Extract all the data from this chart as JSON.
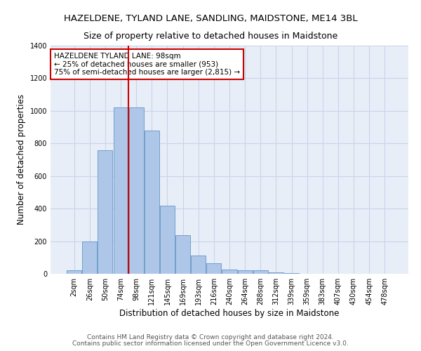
{
  "title": "HAZELDENE, TYLAND LANE, SANDLING, MAIDSTONE, ME14 3BL",
  "subtitle": "Size of property relative to detached houses in Maidstone",
  "xlabel": "Distribution of detached houses by size in Maidstone",
  "ylabel": "Number of detached properties",
  "footer1": "Contains HM Land Registry data © Crown copyright and database right 2024.",
  "footer2": "Contains public sector information licensed under the Open Government Licence v3.0.",
  "annotation_title": "HAZELDENE TYLAND LANE: 98sqm",
  "annotation_line1": "← 25% of detached houses are smaller (953)",
  "annotation_line2": "75% of semi-detached houses are larger (2,815) →",
  "bar_color": "#aec6e8",
  "bar_edge_color": "#6496c8",
  "red_line_color": "#cc0000",
  "grid_color": "#c8d4e8",
  "background_color": "#e8eef8",
  "categories": [
    "2sqm",
    "26sqm",
    "50sqm",
    "74sqm",
    "98sqm",
    "121sqm",
    "145sqm",
    "169sqm",
    "193sqm",
    "216sqm",
    "240sqm",
    "264sqm",
    "288sqm",
    "312sqm",
    "339sqm",
    "359sqm",
    "383sqm",
    "407sqm",
    "430sqm",
    "454sqm",
    "478sqm"
  ],
  "values": [
    20,
    200,
    760,
    1020,
    1020,
    880,
    420,
    235,
    110,
    65,
    25,
    20,
    20,
    10,
    5,
    2,
    0,
    0,
    0,
    0,
    0
  ],
  "ylim": [
    0,
    1400
  ],
  "yticks": [
    0,
    200,
    400,
    600,
    800,
    1000,
    1200,
    1400
  ],
  "red_line_index": 4,
  "title_fontsize": 9.5,
  "subtitle_fontsize": 9,
  "axis_label_fontsize": 8.5,
  "tick_fontsize": 7,
  "footer_fontsize": 6.5,
  "annotation_fontsize": 7.5
}
